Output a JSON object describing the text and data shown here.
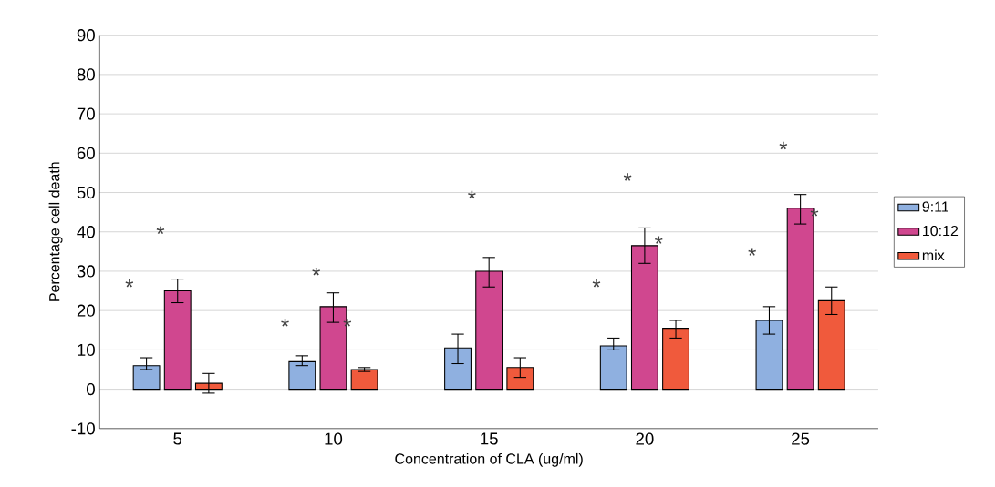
{
  "chart_data": {
    "type": "bar",
    "xlabel": "Concentration of CLA (ug/ml)",
    "ylabel": "Percentage cell death",
    "categories": [
      "5",
      "10",
      "15",
      "20",
      "25"
    ],
    "series": [
      {
        "name": "9:11",
        "color": "#8fb0e0",
        "values": [
          6,
          7,
          10.5,
          11,
          17.5
        ],
        "errors": [
          [
            5,
            8
          ],
          [
            6,
            8.5
          ],
          [
            6.5,
            14
          ],
          [
            10,
            13
          ],
          [
            14,
            21
          ]
        ]
      },
      {
        "name": "10:12",
        "color": "#d0478f",
        "values": [
          25,
          21,
          30,
          36.5,
          46
        ],
        "errors": [
          [
            22,
            28
          ],
          [
            17,
            24.5
          ],
          [
            26,
            33.5
          ],
          [
            32,
            41
          ],
          [
            42,
            49.5
          ]
        ]
      },
      {
        "name": "mix",
        "color": "#f05a3c",
        "values": [
          1.5,
          5,
          5.5,
          15.5,
          22.5
        ],
        "errors": [
          [
            -1,
            4
          ],
          [
            4.5,
            5.5
          ],
          [
            3,
            8
          ],
          [
            13,
            17.5
          ],
          [
            19,
            26
          ]
        ]
      }
    ],
    "ylim": [
      -10,
      90
    ],
    "yticks": [
      -10,
      0,
      10,
      20,
      30,
      40,
      50,
      60,
      70,
      80,
      90
    ],
    "grid": "y",
    "legend": "right",
    "annotations": [
      "*",
      "*",
      "*",
      "*",
      "*",
      "*",
      "*",
      "*",
      "*",
      "*",
      "*",
      "*"
    ]
  }
}
